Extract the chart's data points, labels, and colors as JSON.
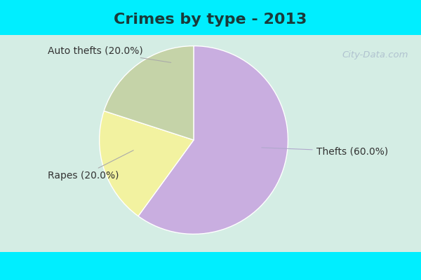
{
  "title": "Crimes by type - 2013",
  "slices": [
    "Thefts",
    "Auto thefts",
    "Rapes"
  ],
  "values": [
    60.0,
    20.0,
    20.0
  ],
  "colors": [
    "#c9aee0",
    "#f2f2a0",
    "#c5d3a8"
  ],
  "labels": [
    "Thefts (60.0%)",
    "Auto thefts (20.0%)",
    "Rapes (20.0%)"
  ],
  "startangle": 90,
  "cyan_bar_color": "#00eeff",
  "bg_color": "#d4ede4",
  "title_fontsize": 16,
  "label_fontsize": 10,
  "watermark": "City-Data.com",
  "title_color": "#1a3a3a"
}
